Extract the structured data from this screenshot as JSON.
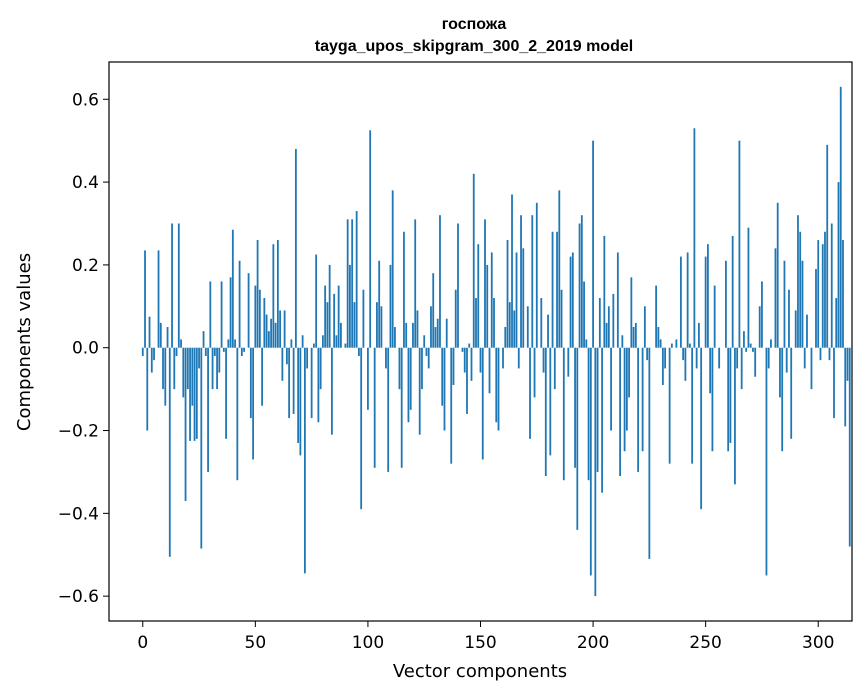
{
  "chart_data": {
    "type": "bar",
    "title": "госпожа",
    "subtitle": "tayga_upos_skipgram_300_2_2019 model",
    "xlabel": "Vector components",
    "ylabel": "Components values",
    "xlim": [
      -15,
      315
    ],
    "ylim": [
      -0.66,
      0.69
    ],
    "xticks": [
      0,
      50,
      100,
      150,
      200,
      250,
      300
    ],
    "yticks": [
      -0.6,
      -0.4,
      -0.2,
      0.0,
      0.2,
      0.4,
      0.6
    ],
    "xtick_labels": [
      "0",
      "50",
      "100",
      "150",
      "200",
      "250",
      "300"
    ],
    "ytick_labels": [
      "−0.6",
      "−0.4",
      "−0.2",
      "0.0",
      "0.2",
      "0.4",
      "0.6"
    ],
    "bar_color": "#1f77b4",
    "grid": false,
    "legend": false,
    "values": [
      -0.02,
      0.235,
      -0.2,
      0.075,
      -0.06,
      -0.03,
      0.0,
      0.235,
      0.06,
      -0.1,
      -0.14,
      0.05,
      -0.505,
      0.3,
      -0.1,
      -0.02,
      0.3,
      0.02,
      -0.12,
      -0.37,
      -0.1,
      -0.225,
      -0.14,
      -0.225,
      -0.22,
      -0.05,
      -0.485,
      0.04,
      -0.02,
      -0.3,
      0.16,
      -0.1,
      -0.02,
      -0.1,
      -0.06,
      0.16,
      -0.01,
      -0.22,
      0.02,
      0.17,
      0.285,
      0.02,
      -0.32,
      0.21,
      -0.02,
      -0.01,
      0.0,
      0.18,
      -0.17,
      -0.27,
      0.15,
      0.26,
      0.14,
      -0.14,
      0.12,
      0.08,
      0.04,
      0.07,
      0.25,
      0.06,
      0.26,
      0.09,
      -0.08,
      0.09,
      -0.04,
      -0.17,
      0.02,
      -0.16,
      0.48,
      -0.23,
      -0.26,
      0.03,
      -0.545,
      -0.05,
      0.0,
      -0.17,
      0.01,
      0.225,
      -0.18,
      -0.1,
      0.03,
      0.15,
      0.11,
      0.2,
      -0.21,
      0.13,
      0.03,
      0.15,
      0.06,
      0.0,
      0.01,
      0.31,
      0.2,
      0.31,
      0.11,
      0.33,
      -0.02,
      -0.39,
      0.14,
      0.0,
      -0.15,
      0.525,
      0.0,
      -0.29,
      0.11,
      0.21,
      0.1,
      0.0,
      -0.05,
      -0.3,
      0.2,
      0.38,
      0.05,
      0.0,
      -0.1,
      -0.29,
      0.28,
      0.06,
      -0.18,
      -0.15,
      0.06,
      0.31,
      0.09,
      -0.21,
      -0.1,
      0.03,
      -0.02,
      -0.05,
      0.1,
      0.18,
      0.05,
      0.07,
      0.32,
      -0.14,
      -0.2,
      0.07,
      0.0,
      -0.28,
      -0.09,
      0.14,
      0.3,
      0.0,
      -0.01,
      -0.06,
      -0.16,
      0.01,
      -0.08,
      0.42,
      0.12,
      0.25,
      -0.06,
      -0.27,
      0.31,
      0.2,
      -0.11,
      0.23,
      0.12,
      -0.18,
      -0.2,
      0.0,
      -0.05,
      0.05,
      0.26,
      0.11,
      0.37,
      0.09,
      0.23,
      -0.05,
      0.32,
      0.24,
      0.0,
      0.1,
      -0.22,
      0.32,
      -0.12,
      0.35,
      0.0,
      0.12,
      -0.06,
      -0.31,
      0.08,
      -0.26,
      0.28,
      -0.1,
      0.28,
      0.38,
      0.14,
      -0.32,
      0.0,
      -0.07,
      0.22,
      0.23,
      -0.29,
      -0.44,
      0.3,
      0.32,
      0.16,
      0.02,
      -0.32,
      -0.55,
      0.5,
      -0.6,
      -0.3,
      0.12,
      -0.35,
      0.27,
      0.06,
      0.1,
      -0.2,
      0.13,
      0.0,
      0.23,
      -0.31,
      0.03,
      -0.25,
      -0.2,
      -0.12,
      0.17,
      0.05,
      0.06,
      -0.3,
      0.0,
      -0.25,
      0.1,
      -0.03,
      -0.51,
      0.0,
      0.0,
      0.15,
      0.05,
      0.02,
      -0.09,
      -0.05,
      0.0,
      -0.28,
      0.01,
      0.0,
      0.02,
      0.0,
      0.22,
      -0.03,
      -0.08,
      0.23,
      0.01,
      -0.28,
      0.53,
      -0.05,
      0.06,
      -0.39,
      0.0,
      0.22,
      0.25,
      -0.11,
      -0.25,
      0.15,
      0.0,
      -0.05,
      0.0,
      0.0,
      0.21,
      -0.25,
      -0.23,
      0.27,
      -0.33,
      -0.05,
      0.5,
      -0.1,
      0.04,
      -0.01,
      0.29,
      0.01,
      -0.01,
      -0.07,
      0.0,
      0.1,
      0.16,
      0.0,
      -0.55,
      -0.05,
      0.02,
      0.0,
      0.24,
      0.35,
      -0.12,
      -0.25,
      0.21,
      -0.06,
      0.14,
      -0.22,
      0.0,
      0.09,
      0.32,
      0.28,
      0.21,
      -0.05,
      0.08,
      0.0,
      -0.1,
      0.0,
      0.19,
      0.26,
      -0.03,
      0.25,
      0.28,
      0.49,
      -0.03,
      0.3,
      -0.17,
      0.12,
      0.4,
      0.63,
      0.26,
      -0.19,
      -0.08,
      -0.48
    ]
  }
}
